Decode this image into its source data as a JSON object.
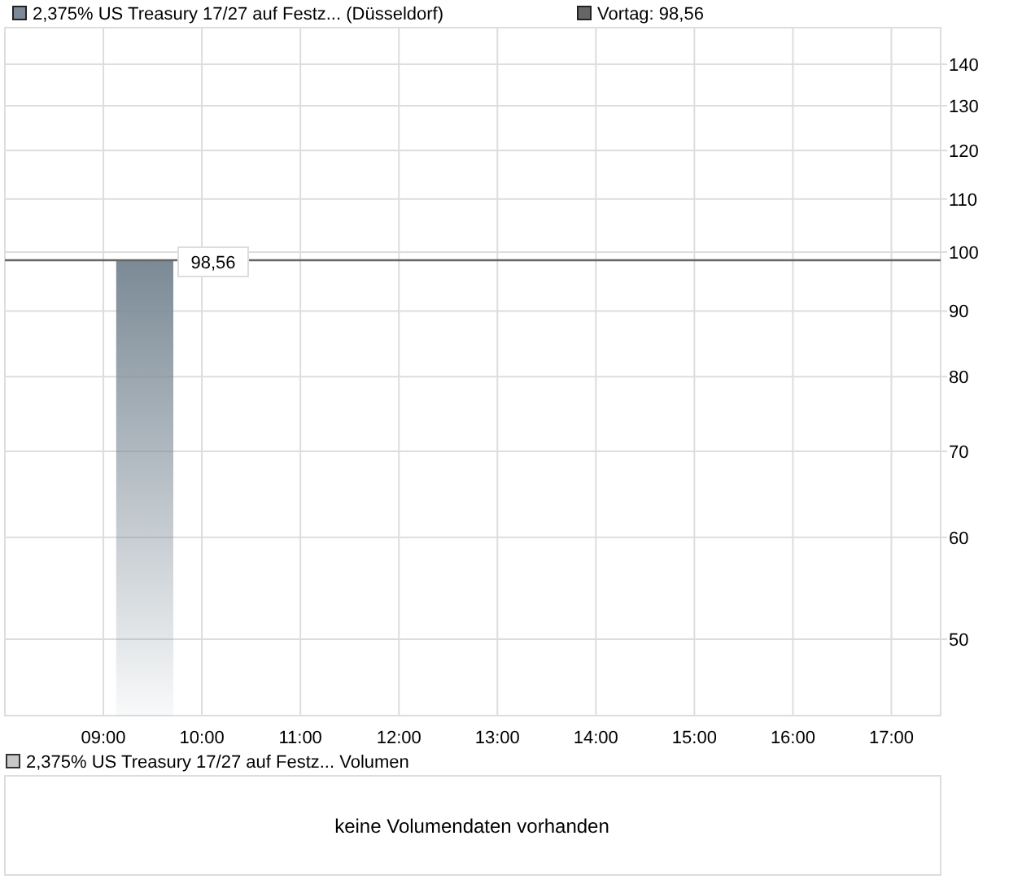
{
  "chart_data": [
    {
      "type": "area",
      "log": "y",
      "grid": true,
      "legend": "top left",
      "xlim": [
        8,
        17.5
      ],
      "ylim": [
        43.6,
        149.5
      ],
      "xticks": [
        {
          "value": 9,
          "label": "09:00"
        },
        {
          "value": 10,
          "label": "10:00"
        },
        {
          "value": 11,
          "label": "11:00"
        },
        {
          "value": 12,
          "label": "12:00"
        },
        {
          "value": 13,
          "label": "13:00"
        },
        {
          "value": 14,
          "label": "14:00"
        },
        {
          "value": 15,
          "label": "15:00"
        },
        {
          "value": 16,
          "label": "16:00"
        },
        {
          "value": 17,
          "label": "17:00"
        }
      ],
      "yticks": [
        50,
        60,
        70,
        80,
        90,
        100,
        110,
        120,
        130,
        140
      ],
      "series": [
        {
          "name": "2,375% US Treasury 17/27 auf Festz... (Düsseldorf)",
          "color": "#7b8a96",
          "x": [
            9.13,
            9.71
          ],
          "values": [
            98.56,
            98.56
          ],
          "value_labels": [
            null,
            "98,56"
          ]
        }
      ],
      "ref_lines": [
        {
          "axis": "y",
          "value": 98.56,
          "label": "Vortag: 98,56",
          "color": "#666666"
        }
      ]
    },
    {
      "type": "other",
      "title": "2,375% US Treasury 17/27 auf Festz... Volumen",
      "annotations": [
        "keine Volumendaten vorhanden"
      ]
    }
  ]
}
